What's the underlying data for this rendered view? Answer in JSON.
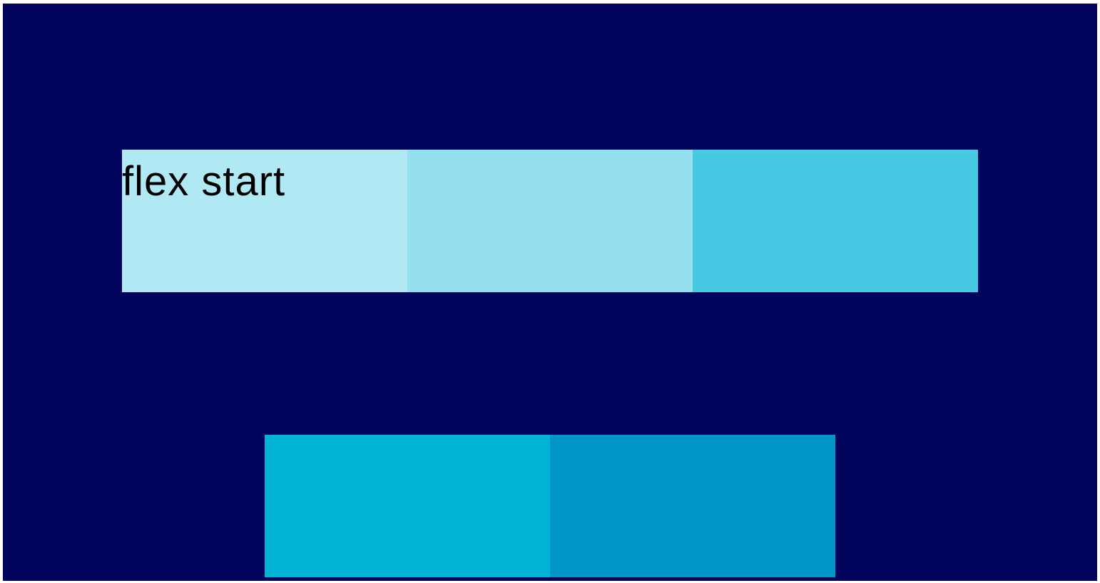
{
  "colors": {
    "background": "#02035d",
    "box_1": "#b0e8f4",
    "box_2": "#94e0ef",
    "box_3": "#48c9e3",
    "box_4": "#00b4d8",
    "box_5": "#0096c7"
  },
  "boxes": {
    "first_label": "flex start"
  }
}
